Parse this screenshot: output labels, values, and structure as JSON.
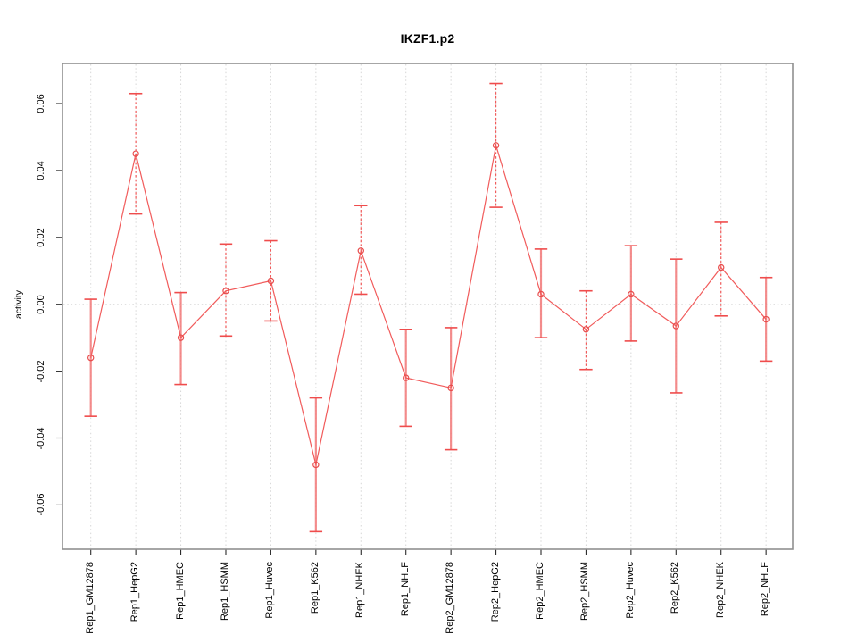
{
  "figure": {
    "title": "IKZF1.p2"
  },
  "chart_data": {
    "type": "line",
    "title": "IKZF1.p2",
    "xlabel": "",
    "ylabel": "activity",
    "ylim": [
      -0.0732,
      0.072
    ],
    "yticks": [
      0.06,
      0.04,
      0.02,
      0.0,
      -0.02,
      -0.04,
      -0.06
    ],
    "ytick_labels": [
      "0.06",
      "0.04",
      "0.02",
      "0.00",
      "-0.02",
      "-0.04",
      "-0.06"
    ],
    "grid": {
      "vertical_dotted_per_category": true,
      "horizontal_dotted_at_zero": true
    },
    "legend": "none",
    "categories": [
      "Rep1_GM12878",
      "Rep1_HepG2",
      "Rep1_HMEC",
      "Rep1_HSMM",
      "Rep1_Huvec",
      "Rep1_K562",
      "Rep1_NHEK",
      "Rep1_NHLF",
      "Rep2_GM12878",
      "Rep2_HepG2",
      "Rep2_HMEC",
      "Rep2_HSMM",
      "Rep2_Huvec",
      "Rep2_K562",
      "Rep2_NHEK",
      "Rep2_NHLF"
    ],
    "series": [
      {
        "name": "activity",
        "marker": "open-circle",
        "values": [
          -0.016,
          0.045,
          -0.01,
          0.004,
          0.007,
          -0.048,
          0.016,
          -0.022,
          -0.025,
          0.0475,
          0.003,
          -0.0075,
          0.003,
          -0.0065,
          0.011,
          -0.0045
        ],
        "error_upper": [
          0.0015,
          0.063,
          0.0035,
          0.018,
          0.019,
          -0.028,
          0.0295,
          -0.0075,
          -0.007,
          0.066,
          0.0165,
          0.004,
          0.0175,
          0.0135,
          0.0245,
          0.008
        ],
        "error_lower": [
          -0.0335,
          0.027,
          -0.024,
          -0.0095,
          -0.005,
          -0.068,
          0.003,
          -0.0365,
          -0.0435,
          0.029,
          -0.01,
          -0.0195,
          -0.011,
          -0.0265,
          -0.0035,
          -0.017
        ],
        "errorbar_line_styles": [
          "solid",
          "dashed",
          "solid",
          "dashed",
          "dashed",
          "solid",
          "dashed",
          "solid",
          "solid",
          "dashed",
          "solid",
          "dashed",
          "solid",
          "solid",
          "dashed",
          "solid"
        ]
      }
    ],
    "colors": {
      "line": "#f15b5b",
      "marker": "#e84d4d",
      "errorbar_solid": "rgba(242,120,120,0.85)",
      "errorbar_cap": "#ef4c4c",
      "gridline": "#d6d6d6",
      "box_border": "#8f8f8f",
      "text": "#000000"
    }
  }
}
